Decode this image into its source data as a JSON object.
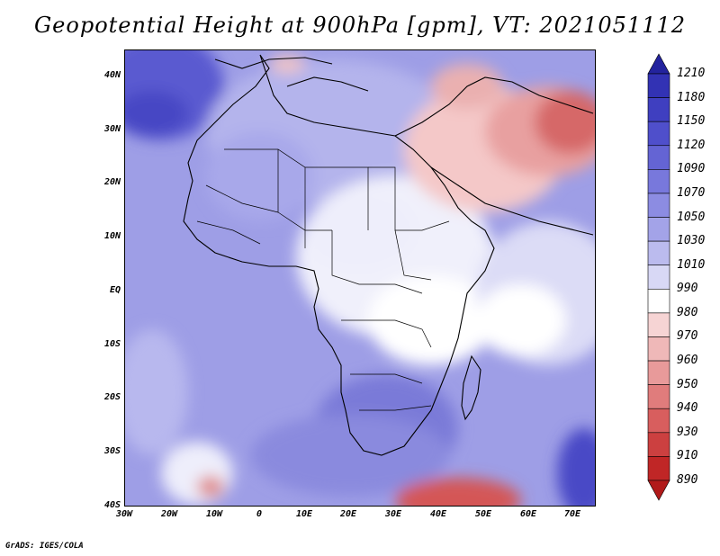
{
  "title": "Geopotential Height at 900hPa [gpm], VT: 2021051112",
  "credit": "GrADS: IGES/COLA",
  "lat_labels": [
    "40N",
    "30N",
    "20N",
    "10N",
    "EQ",
    "10S",
    "20S",
    "30S",
    "40S"
  ],
  "lon_labels": [
    "30W",
    "20W",
    "10W",
    "0",
    "10E",
    "20E",
    "30E",
    "40E",
    "50E",
    "60E",
    "70E"
  ],
  "colorbar": {
    "levels": [
      "1210",
      "1180",
      "1150",
      "1120",
      "1090",
      "1070",
      "1050",
      "1030",
      "1010",
      "990",
      "980",
      "970",
      "960",
      "950",
      "940",
      "930",
      "910",
      "890"
    ],
    "colors": [
      "#23239e",
      "#3232b4",
      "#3f3fc0",
      "#4f4fcb",
      "#6464d4",
      "#7878dc",
      "#8c8ce2",
      "#a3a3e8",
      "#bbbbee",
      "#d8d8f5",
      "#ffffff",
      "#f6d4d4",
      "#efb8b8",
      "#e89a9a",
      "#e07c7c",
      "#d85e5e",
      "#cc4040",
      "#c02626",
      "#b11a1a"
    ]
  },
  "icons": {
    "arrow_up": "colorbar-max-arrow-icon",
    "arrow_down": "colorbar-min-arrow-icon"
  }
}
